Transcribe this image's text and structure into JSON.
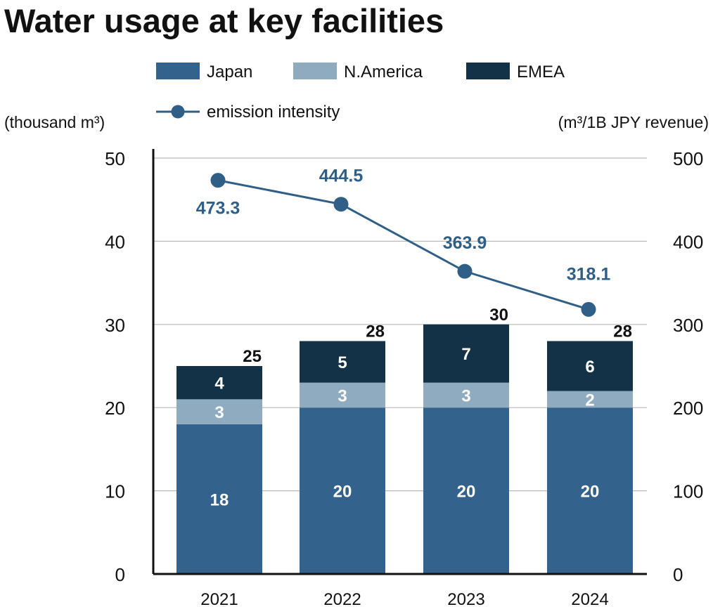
{
  "chart_data": {
    "type": "bar",
    "title": "Water usage at key facilities",
    "ylabel": "(thousand m³)",
    "y2label": "(m³/1B JPY revenue)",
    "ylim": [
      0,
      50
    ],
    "y2lim": [
      0,
      500
    ],
    "yticks": [
      "0",
      "10",
      "20",
      "30",
      "40",
      "50"
    ],
    "y2ticks": [
      "0",
      "100",
      "200",
      "300",
      "400",
      "500"
    ],
    "categories": [
      "2021",
      "2022",
      "2023",
      "2024"
    ],
    "stacked": true,
    "series": [
      {
        "name": "Japan",
        "color": "#33628c",
        "values": [
          18,
          20,
          20,
          20
        ],
        "labels": [
          "18",
          "20",
          "20",
          "20"
        ]
      },
      {
        "name": "N.America",
        "color": "#8eabc0",
        "values": [
          3,
          3,
          3,
          2
        ],
        "labels": [
          "3",
          "3",
          "3",
          "2"
        ]
      },
      {
        "name": "EMEA",
        "color": "#143247",
        "values": [
          4,
          5,
          7,
          6
        ],
        "labels": [
          "4",
          "5",
          "7",
          "6"
        ]
      }
    ],
    "totals": [
      "25",
      "28",
      "30",
      "28"
    ],
    "line_series": {
      "name": "emission intensity",
      "color": "#2f5f87",
      "axis": "right",
      "values": [
        473.3,
        444.5,
        363.9,
        318.1
      ],
      "labels": [
        "473.3",
        "444.5",
        "363.9",
        "318.1"
      ]
    },
    "grid": true,
    "legend_position": "top"
  }
}
